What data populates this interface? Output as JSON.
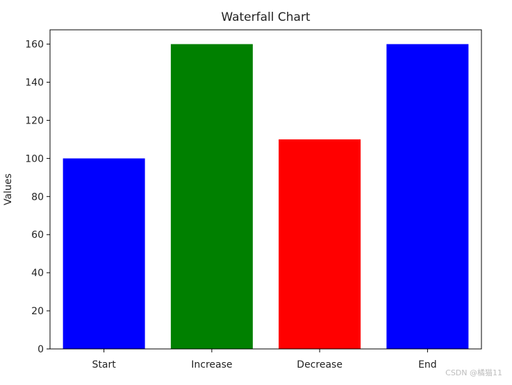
{
  "chart_data": {
    "type": "bar",
    "title": "Waterfall Chart",
    "xlabel": "",
    "ylabel": "Values",
    "categories": [
      "Start",
      "Increase",
      "Decrease",
      "End"
    ],
    "values": [
      100,
      160,
      110,
      160
    ],
    "bar_colors": [
      "#0000ff",
      "#008000",
      "#ff0000",
      "#0000ff"
    ],
    "ylim": [
      0,
      167.5
    ],
    "yticks": [
      0,
      20,
      40,
      60,
      80,
      100,
      120,
      140,
      160
    ],
    "grid": false,
    "legend": "none"
  },
  "watermark": "CSDN @橘猫11"
}
